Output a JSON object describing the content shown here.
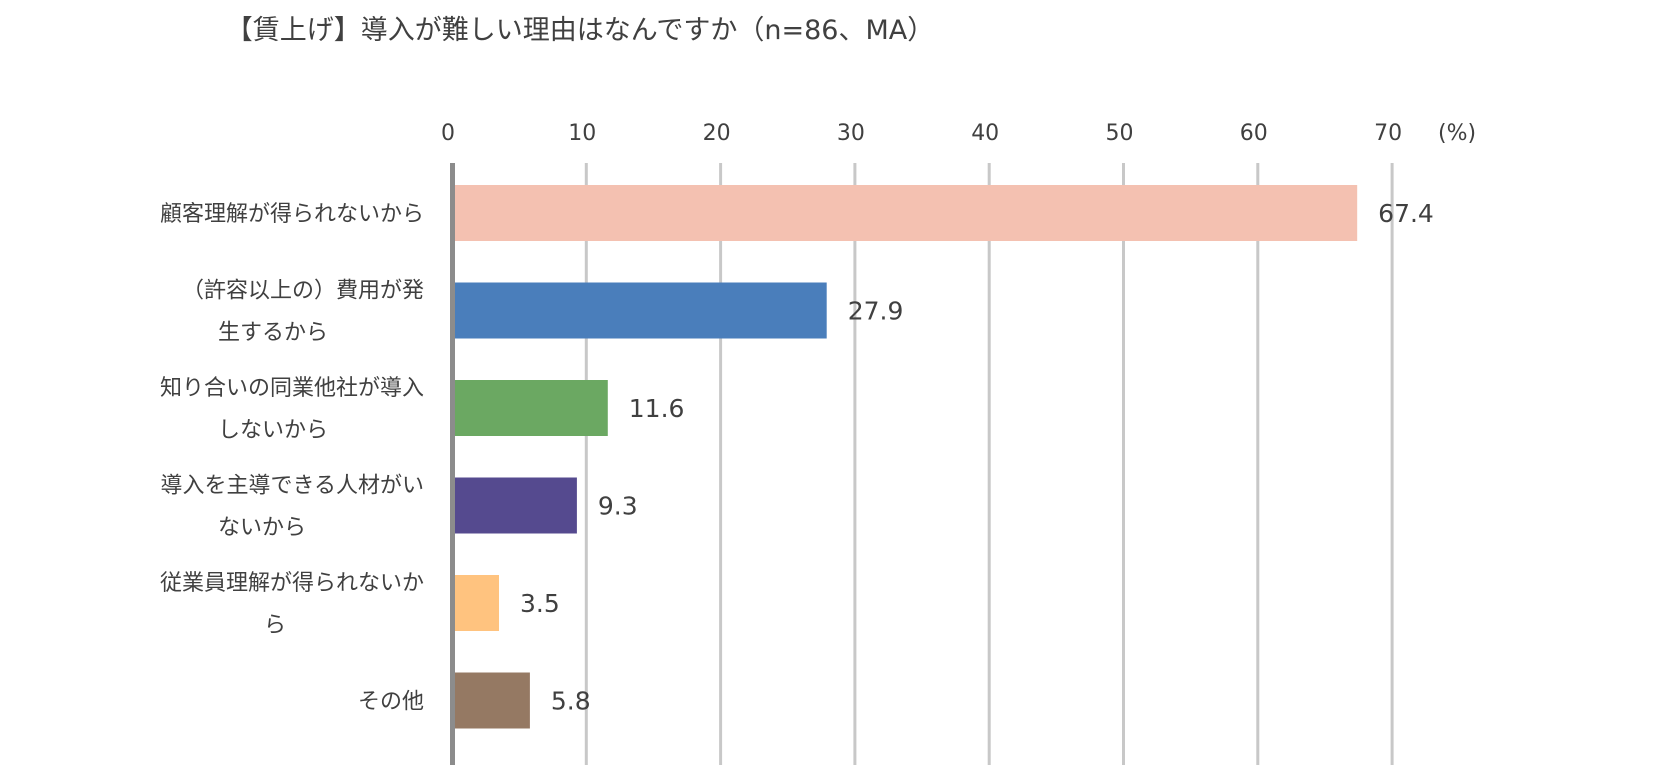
{
  "chart_data": {
    "type": "bar",
    "orientation": "horizontal",
    "title": "【賃上げ】導入が難しい理由はなんですか（n=86、MA）",
    "unit_label": "(%)",
    "xlim": [
      0,
      70
    ],
    "ticks": [
      "0",
      "10",
      "20",
      "30",
      "40",
      "50",
      "60",
      "70"
    ],
    "grid": true,
    "legend": "none",
    "categories": [
      [
        "顧客理解が得られないから"
      ],
      [
        "（許容以上の）費用が発",
        "生するから"
      ],
      [
        "知り合いの同業他社が導入",
        "しないから"
      ],
      [
        "導入を主導できる人材がい",
        "ないから"
      ],
      [
        "従業員理解が得られないか",
        "ら"
      ],
      [
        "その他"
      ]
    ],
    "values": [
      67.4,
      27.9,
      11.6,
      9.3,
      3.5,
      5.8
    ],
    "value_labels": [
      "67.4",
      "27.9",
      "11.6",
      "9.3",
      "3.5",
      "5.8"
    ],
    "colors": [
      "#F4C1B1",
      "#4A7EBB",
      "#6BA862",
      "#554A8F",
      "#FFC37F",
      "#957963"
    ]
  }
}
